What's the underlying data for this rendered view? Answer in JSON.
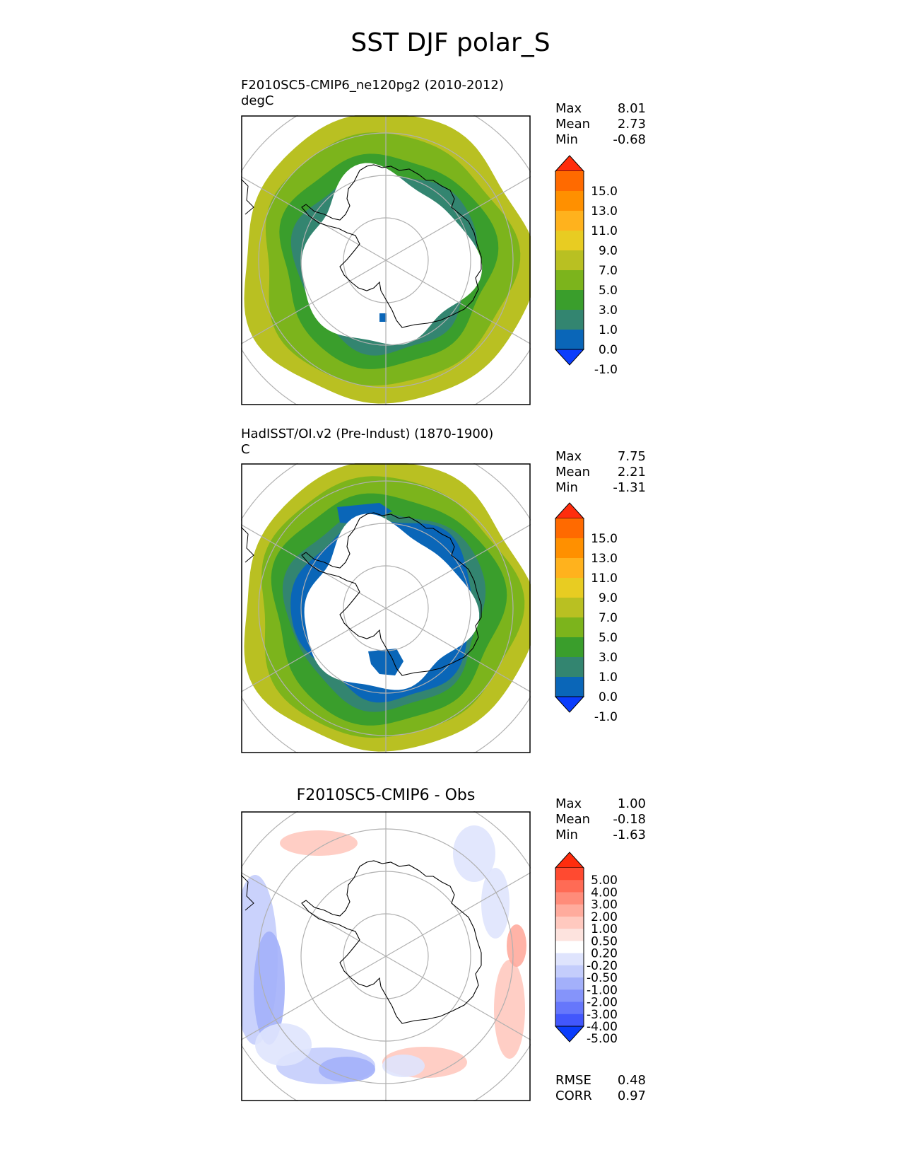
{
  "figure_title": "SST DJF polar_S",
  "chart_data": [
    {
      "type": "heatmap",
      "projection": "south polar stereographic",
      "title_lines": [
        "F2010SC5-CMIP6_ne120pg2 (2010-2012)",
        "degC"
      ],
      "stats": [
        {
          "label": "Max",
          "value": "8.01"
        },
        {
          "label": "Mean",
          "value": "2.73"
        },
        {
          "label": "Min",
          "value": "-0.68"
        }
      ],
      "colorbar": {
        "ticks": [
          "15.0",
          "13.0",
          "11.0",
          "9.0",
          "7.0",
          "5.0",
          "3.0",
          "1.0",
          "0.0",
          "-1.0"
        ],
        "colors": [
          "#ff2d0d",
          "#ff6a00",
          "#ff9000",
          "#ffb21d",
          "#e8cc22",
          "#b9c022",
          "#7cb41c",
          "#3a9e2c",
          "#338570",
          "#0a66b8",
          "#0b3dfc"
        ],
        "extend": "both"
      },
      "field_bands": [
        {
          "value": 6.5,
          "color": "#b9c022"
        },
        {
          "value": 4.0,
          "color": "#7cb41c"
        },
        {
          "value": 2.0,
          "color": "#3a9e2c"
        },
        {
          "value": 0.5,
          "color": "#338570"
        }
      ]
    },
    {
      "type": "heatmap",
      "projection": "south polar stereographic",
      "title_lines": [
        "HadISST/OI.v2 (Pre-Indust) (1870-1900)",
        "C"
      ],
      "stats": [
        {
          "label": "Max",
          "value": "7.75"
        },
        {
          "label": "Mean",
          "value": "2.21"
        },
        {
          "label": "Min",
          "value": "-1.31"
        }
      ],
      "colorbar": {
        "ticks": [
          "15.0",
          "13.0",
          "11.0",
          "9.0",
          "7.0",
          "5.0",
          "3.0",
          "1.0",
          "0.0",
          "-1.0"
        ],
        "colors": [
          "#ff2d0d",
          "#ff6a00",
          "#ff9000",
          "#ffb21d",
          "#e8cc22",
          "#b9c022",
          "#7cb41c",
          "#3a9e2c",
          "#338570",
          "#0a66b8",
          "#0b3dfc"
        ],
        "extend": "both"
      },
      "field_bands": [
        {
          "value": 5.5,
          "color": "#b9c022"
        },
        {
          "value": 3.5,
          "color": "#7cb41c"
        },
        {
          "value": 1.5,
          "color": "#3a9e2c"
        },
        {
          "value": 0.5,
          "color": "#338570"
        },
        {
          "value": -0.5,
          "color": "#0a66b8"
        }
      ]
    },
    {
      "type": "heatmap",
      "projection": "south polar stereographic",
      "title": "F2010SC5-CMIP6 - Obs",
      "stats": [
        {
          "label": "Max",
          "value": "1.00"
        },
        {
          "label": "Mean",
          "value": "-0.18"
        },
        {
          "label": "Min",
          "value": "-1.63"
        }
      ],
      "metrics": [
        {
          "label": "RMSE",
          "value": "0.48"
        },
        {
          "label": "CORR",
          "value": "0.97"
        }
      ],
      "colorbar": {
        "ticks": [
          "5.00",
          "4.00",
          "3.00",
          "2.00",
          "1.00",
          "0.50",
          "0.20",
          "-0.20",
          "-0.50",
          "-1.00",
          "-2.00",
          "-3.00",
          "-4.00",
          "-5.00"
        ],
        "colors": [
          "#ff2d0d",
          "#ff4a30",
          "#ff6b55",
          "#ff8c7a",
          "#ffab9d",
          "#ffc9bf",
          "#fde3de",
          "#ffffff",
          "#dfe4fd",
          "#c4cdfc",
          "#a3b0fa",
          "#8594fa",
          "#6677fb",
          "#4257fc",
          "#0b3dfc"
        ],
        "extend": "both"
      },
      "field_bands": [
        {
          "value": -0.35,
          "color": "#dfe4fd"
        },
        {
          "value": -0.75,
          "color": "#c4cdfc"
        },
        {
          "value": 0.35,
          "color": "#ffc9bf"
        },
        {
          "value": 0.75,
          "color": "#ffab9d"
        }
      ]
    }
  ]
}
